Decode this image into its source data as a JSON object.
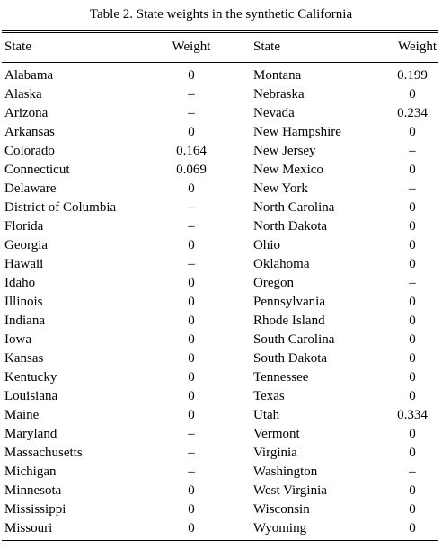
{
  "table": {
    "caption": "Table 2.  State weights in the synthetic California",
    "headers": {
      "state_left": "State",
      "weight_left": "Weight",
      "state_right": "State",
      "weight_right": "Weight"
    },
    "rows": [
      {
        "left_state": "Alabama",
        "left_weight": "0",
        "right_state": "Montana",
        "right_weight": "0.199"
      },
      {
        "left_state": "Alaska",
        "left_weight": "–",
        "right_state": "Nebraska",
        "right_weight": "0"
      },
      {
        "left_state": "Arizona",
        "left_weight": "–",
        "right_state": "Nevada",
        "right_weight": "0.234"
      },
      {
        "left_state": "Arkansas",
        "left_weight": "0",
        "right_state": "New Hampshire",
        "right_weight": "0"
      },
      {
        "left_state": "Colorado",
        "left_weight": "0.164",
        "right_state": "New Jersey",
        "right_weight": "–"
      },
      {
        "left_state": "Connecticut",
        "left_weight": "0.069",
        "right_state": "New Mexico",
        "right_weight": "0"
      },
      {
        "left_state": "Delaware",
        "left_weight": "0",
        "right_state": "New York",
        "right_weight": "–"
      },
      {
        "left_state": "District of Columbia",
        "left_weight": "–",
        "right_state": "North Carolina",
        "right_weight": "0"
      },
      {
        "left_state": "Florida",
        "left_weight": "–",
        "right_state": "North Dakota",
        "right_weight": "0"
      },
      {
        "left_state": "Georgia",
        "left_weight": "0",
        "right_state": "Ohio",
        "right_weight": "0"
      },
      {
        "left_state": "Hawaii",
        "left_weight": "–",
        "right_state": "Oklahoma",
        "right_weight": "0"
      },
      {
        "left_state": "Idaho",
        "left_weight": "0",
        "right_state": "Oregon",
        "right_weight": "–"
      },
      {
        "left_state": "Illinois",
        "left_weight": "0",
        "right_state": "Pennsylvania",
        "right_weight": "0"
      },
      {
        "left_state": "Indiana",
        "left_weight": "0",
        "right_state": "Rhode Island",
        "right_weight": "0"
      },
      {
        "left_state": "Iowa",
        "left_weight": "0",
        "right_state": "South Carolina",
        "right_weight": "0"
      },
      {
        "left_state": "Kansas",
        "left_weight": "0",
        "right_state": "South Dakota",
        "right_weight": "0"
      },
      {
        "left_state": "Kentucky",
        "left_weight": "0",
        "right_state": "Tennessee",
        "right_weight": "0"
      },
      {
        "left_state": "Louisiana",
        "left_weight": "0",
        "right_state": "Texas",
        "right_weight": "0"
      },
      {
        "left_state": "Maine",
        "left_weight": "0",
        "right_state": "Utah",
        "right_weight": "0.334"
      },
      {
        "left_state": "Maryland",
        "left_weight": "–",
        "right_state": "Vermont",
        "right_weight": "0"
      },
      {
        "left_state": "Massachusetts",
        "left_weight": "–",
        "right_state": "Virginia",
        "right_weight": "0"
      },
      {
        "left_state": "Michigan",
        "left_weight": "–",
        "right_state": "Washington",
        "right_weight": "–"
      },
      {
        "left_state": "Minnesota",
        "left_weight": "0",
        "right_state": "West Virginia",
        "right_weight": "0"
      },
      {
        "left_state": "Mississippi",
        "left_weight": "0",
        "right_state": "Wisconsin",
        "right_weight": "0"
      },
      {
        "left_state": "Missouri",
        "left_weight": "0",
        "right_state": "Wyoming",
        "right_weight": "0"
      }
    ]
  }
}
